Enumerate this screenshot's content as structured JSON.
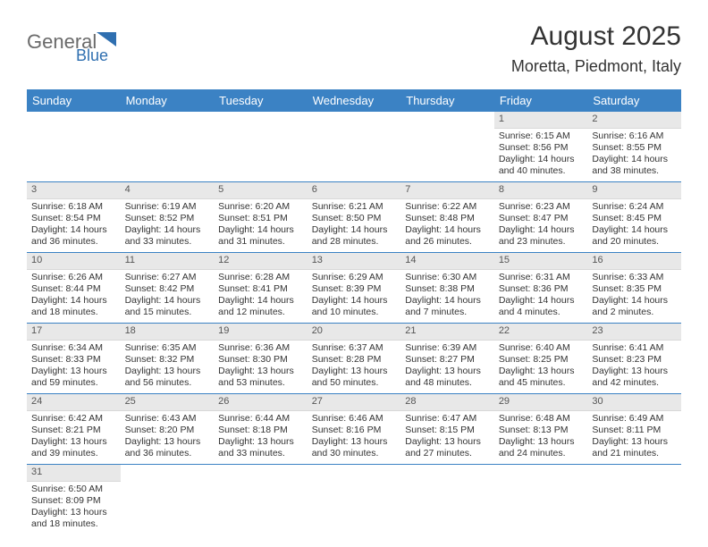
{
  "logo": {
    "word1": "General",
    "word2": "Blue",
    "word1_color": "#6a6a6a",
    "word2_color": "#2f6fb0",
    "tri_color": "#2f6fb0"
  },
  "title": "August 2025",
  "subtitle": "Moretta, Piedmont, Italy",
  "colors": {
    "header_bg": "#3b82c4",
    "daynum_bg": "#e8e8e8",
    "rule": "#3b82c4"
  },
  "day_headers": [
    "Sunday",
    "Monday",
    "Tuesday",
    "Wednesday",
    "Thursday",
    "Friday",
    "Saturday"
  ],
  "weeks": [
    [
      null,
      null,
      null,
      null,
      null,
      {
        "n": "1",
        "sunrise": "Sunrise: 6:15 AM",
        "sunset": "Sunset: 8:56 PM",
        "day1": "Daylight: 14 hours",
        "day2": "and 40 minutes."
      },
      {
        "n": "2",
        "sunrise": "Sunrise: 6:16 AM",
        "sunset": "Sunset: 8:55 PM",
        "day1": "Daylight: 14 hours",
        "day2": "and 38 minutes."
      }
    ],
    [
      {
        "n": "3",
        "sunrise": "Sunrise: 6:18 AM",
        "sunset": "Sunset: 8:54 PM",
        "day1": "Daylight: 14 hours",
        "day2": "and 36 minutes."
      },
      {
        "n": "4",
        "sunrise": "Sunrise: 6:19 AM",
        "sunset": "Sunset: 8:52 PM",
        "day1": "Daylight: 14 hours",
        "day2": "and 33 minutes."
      },
      {
        "n": "5",
        "sunrise": "Sunrise: 6:20 AM",
        "sunset": "Sunset: 8:51 PM",
        "day1": "Daylight: 14 hours",
        "day2": "and 31 minutes."
      },
      {
        "n": "6",
        "sunrise": "Sunrise: 6:21 AM",
        "sunset": "Sunset: 8:50 PM",
        "day1": "Daylight: 14 hours",
        "day2": "and 28 minutes."
      },
      {
        "n": "7",
        "sunrise": "Sunrise: 6:22 AM",
        "sunset": "Sunset: 8:48 PM",
        "day1": "Daylight: 14 hours",
        "day2": "and 26 minutes."
      },
      {
        "n": "8",
        "sunrise": "Sunrise: 6:23 AM",
        "sunset": "Sunset: 8:47 PM",
        "day1": "Daylight: 14 hours",
        "day2": "and 23 minutes."
      },
      {
        "n": "9",
        "sunrise": "Sunrise: 6:24 AM",
        "sunset": "Sunset: 8:45 PM",
        "day1": "Daylight: 14 hours",
        "day2": "and 20 minutes."
      }
    ],
    [
      {
        "n": "10",
        "sunrise": "Sunrise: 6:26 AM",
        "sunset": "Sunset: 8:44 PM",
        "day1": "Daylight: 14 hours",
        "day2": "and 18 minutes."
      },
      {
        "n": "11",
        "sunrise": "Sunrise: 6:27 AM",
        "sunset": "Sunset: 8:42 PM",
        "day1": "Daylight: 14 hours",
        "day2": "and 15 minutes."
      },
      {
        "n": "12",
        "sunrise": "Sunrise: 6:28 AM",
        "sunset": "Sunset: 8:41 PM",
        "day1": "Daylight: 14 hours",
        "day2": "and 12 minutes."
      },
      {
        "n": "13",
        "sunrise": "Sunrise: 6:29 AM",
        "sunset": "Sunset: 8:39 PM",
        "day1": "Daylight: 14 hours",
        "day2": "and 10 minutes."
      },
      {
        "n": "14",
        "sunrise": "Sunrise: 6:30 AM",
        "sunset": "Sunset: 8:38 PM",
        "day1": "Daylight: 14 hours",
        "day2": "and 7 minutes."
      },
      {
        "n": "15",
        "sunrise": "Sunrise: 6:31 AM",
        "sunset": "Sunset: 8:36 PM",
        "day1": "Daylight: 14 hours",
        "day2": "and 4 minutes."
      },
      {
        "n": "16",
        "sunrise": "Sunrise: 6:33 AM",
        "sunset": "Sunset: 8:35 PM",
        "day1": "Daylight: 14 hours",
        "day2": "and 2 minutes."
      }
    ],
    [
      {
        "n": "17",
        "sunrise": "Sunrise: 6:34 AM",
        "sunset": "Sunset: 8:33 PM",
        "day1": "Daylight: 13 hours",
        "day2": "and 59 minutes."
      },
      {
        "n": "18",
        "sunrise": "Sunrise: 6:35 AM",
        "sunset": "Sunset: 8:32 PM",
        "day1": "Daylight: 13 hours",
        "day2": "and 56 minutes."
      },
      {
        "n": "19",
        "sunrise": "Sunrise: 6:36 AM",
        "sunset": "Sunset: 8:30 PM",
        "day1": "Daylight: 13 hours",
        "day2": "and 53 minutes."
      },
      {
        "n": "20",
        "sunrise": "Sunrise: 6:37 AM",
        "sunset": "Sunset: 8:28 PM",
        "day1": "Daylight: 13 hours",
        "day2": "and 50 minutes."
      },
      {
        "n": "21",
        "sunrise": "Sunrise: 6:39 AM",
        "sunset": "Sunset: 8:27 PM",
        "day1": "Daylight: 13 hours",
        "day2": "and 48 minutes."
      },
      {
        "n": "22",
        "sunrise": "Sunrise: 6:40 AM",
        "sunset": "Sunset: 8:25 PM",
        "day1": "Daylight: 13 hours",
        "day2": "and 45 minutes."
      },
      {
        "n": "23",
        "sunrise": "Sunrise: 6:41 AM",
        "sunset": "Sunset: 8:23 PM",
        "day1": "Daylight: 13 hours",
        "day2": "and 42 minutes."
      }
    ],
    [
      {
        "n": "24",
        "sunrise": "Sunrise: 6:42 AM",
        "sunset": "Sunset: 8:21 PM",
        "day1": "Daylight: 13 hours",
        "day2": "and 39 minutes."
      },
      {
        "n": "25",
        "sunrise": "Sunrise: 6:43 AM",
        "sunset": "Sunset: 8:20 PM",
        "day1": "Daylight: 13 hours",
        "day2": "and 36 minutes."
      },
      {
        "n": "26",
        "sunrise": "Sunrise: 6:44 AM",
        "sunset": "Sunset: 8:18 PM",
        "day1": "Daylight: 13 hours",
        "day2": "and 33 minutes."
      },
      {
        "n": "27",
        "sunrise": "Sunrise: 6:46 AM",
        "sunset": "Sunset: 8:16 PM",
        "day1": "Daylight: 13 hours",
        "day2": "and 30 minutes."
      },
      {
        "n": "28",
        "sunrise": "Sunrise: 6:47 AM",
        "sunset": "Sunset: 8:15 PM",
        "day1": "Daylight: 13 hours",
        "day2": "and 27 minutes."
      },
      {
        "n": "29",
        "sunrise": "Sunrise: 6:48 AM",
        "sunset": "Sunset: 8:13 PM",
        "day1": "Daylight: 13 hours",
        "day2": "and 24 minutes."
      },
      {
        "n": "30",
        "sunrise": "Sunrise: 6:49 AM",
        "sunset": "Sunset: 8:11 PM",
        "day1": "Daylight: 13 hours",
        "day2": "and 21 minutes."
      }
    ],
    [
      {
        "n": "31",
        "sunrise": "Sunrise: 6:50 AM",
        "sunset": "Sunset: 8:09 PM",
        "day1": "Daylight: 13 hours",
        "day2": "and 18 minutes."
      },
      null,
      null,
      null,
      null,
      null,
      null
    ]
  ]
}
